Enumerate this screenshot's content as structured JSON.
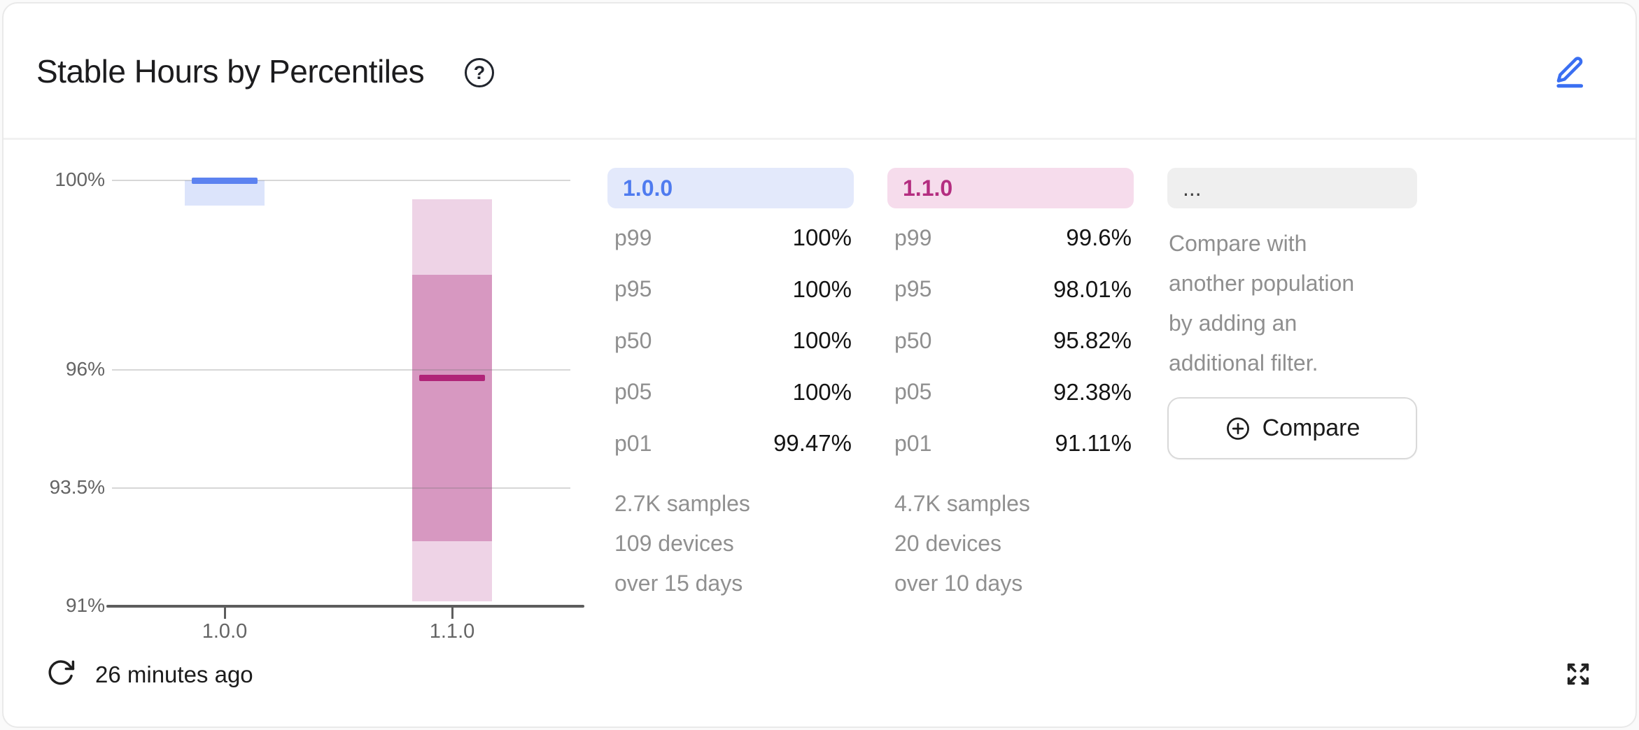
{
  "card": {
    "title": "Stable Hours by Percentiles",
    "last_updated": "26 minutes ago"
  },
  "chart_data": {
    "type": "percentile-box",
    "title": "Stable Hours by Percentiles",
    "categories": [
      "1.0.0",
      "1.1.0"
    ],
    "y_ticks": [
      {
        "label": "100%",
        "value": 100
      },
      {
        "label": "96%",
        "value": 96
      },
      {
        "label": "93.5%",
        "value": 93.5
      },
      {
        "label": "91%",
        "value": 91
      }
    ],
    "ylim": [
      91,
      100.1
    ],
    "grid": true,
    "legend_position": "right-columns",
    "series": [
      {
        "name": "1.0.0",
        "p99": 100,
        "p95": 100,
        "p50": 100,
        "p05": 100,
        "p01": 99.47,
        "median_color": "#5c82f0",
        "box_inner_color": "#dce4fb",
        "box_outer_color": "#dce4fb"
      },
      {
        "name": "1.1.0",
        "p99": 99.6,
        "p95": 98.01,
        "p50": 95.82,
        "p05": 92.38,
        "p01": 91.11,
        "median_color": "#b02478",
        "box_inner_color": "#d798c1",
        "box_outer_color": "#eed3e6"
      }
    ]
  },
  "columns": [
    {
      "badge": "1.0.0",
      "badge_text_color": "#4f7bef",
      "badge_bg_color": "#e3e9fb",
      "rows": [
        {
          "label": "p99",
          "value": "100%"
        },
        {
          "label": "p95",
          "value": "100%"
        },
        {
          "label": "p50",
          "value": "100%"
        },
        {
          "label": "p05",
          "value": "100%"
        },
        {
          "label": "p01",
          "value": "99.47%"
        }
      ],
      "samples": "2.7K samples",
      "devices": "109 devices",
      "duration": "over 15 days"
    },
    {
      "badge": "1.1.0",
      "badge_text_color": "#b42d80",
      "badge_bg_color": "#f6dcec",
      "rows": [
        {
          "label": "p99",
          "value": "99.6%"
        },
        {
          "label": "p95",
          "value": "98.01%"
        },
        {
          "label": "p50",
          "value": "95.82%"
        },
        {
          "label": "p05",
          "value": "92.38%"
        },
        {
          "label": "p01",
          "value": "91.11%"
        }
      ],
      "samples": "4.7K samples",
      "devices": "20 devices",
      "duration": "over 10 days"
    }
  ],
  "compare": {
    "badge": "...",
    "description": "Compare with another population by adding an additional filter.",
    "button_label": "Compare"
  },
  "icons": {
    "help": "?",
    "edit_color": "#3a6ff2"
  }
}
